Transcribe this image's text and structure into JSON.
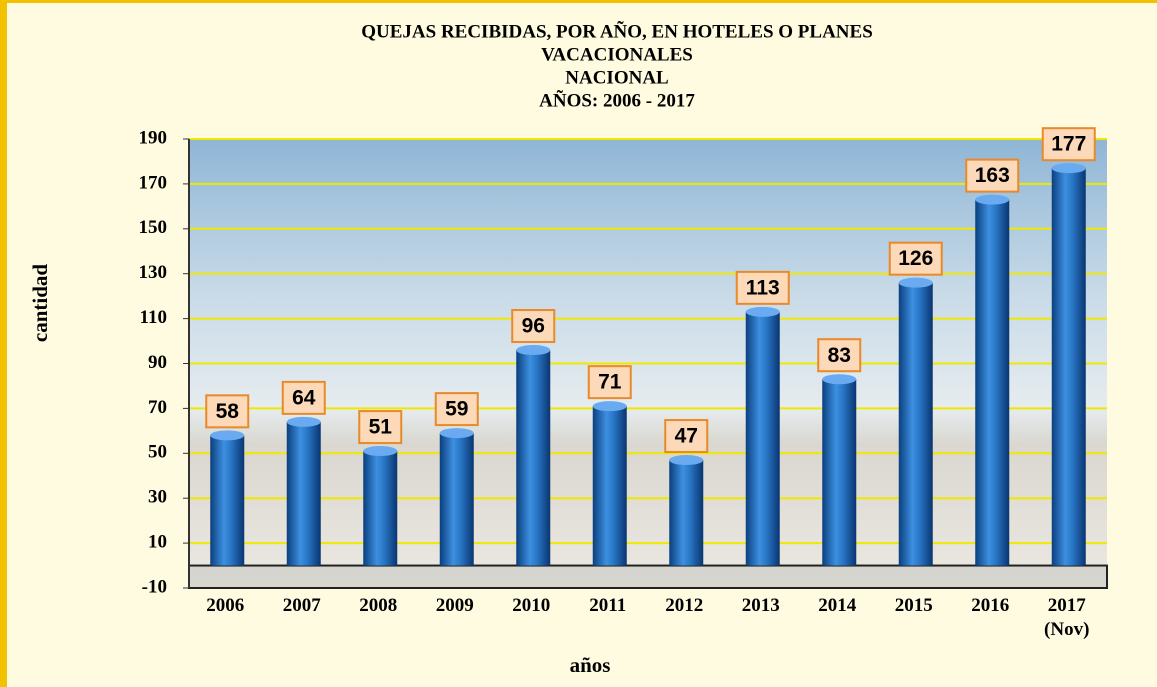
{
  "chart_data": {
    "type": "bar",
    "title": [
      "QUEJAS RECIBIDAS,  POR AÑO, EN HOTELES O PLANES",
      "VACACIONALES",
      "NACIONAL",
      "AÑOS:  2006 - 2017"
    ],
    "x_label": "años",
    "y_label": "cantidad",
    "categories": [
      "2006",
      "2007",
      "2008",
      "2009",
      "2010",
      "2011",
      "2012",
      "2013",
      "2014",
      "2015",
      "2016",
      "2017 (Nov)"
    ],
    "values": [
      58,
      64,
      51,
      59,
      96,
      71,
      47,
      113,
      83,
      126,
      163,
      177
    ],
    "color": "#1f6fc0",
    "ylim": [
      -10,
      190
    ],
    "yticks": [
      -10,
      10,
      30,
      50,
      70,
      90,
      110,
      130,
      150,
      170,
      190
    ],
    "grid": true,
    "grid_color": "#f0e800"
  }
}
